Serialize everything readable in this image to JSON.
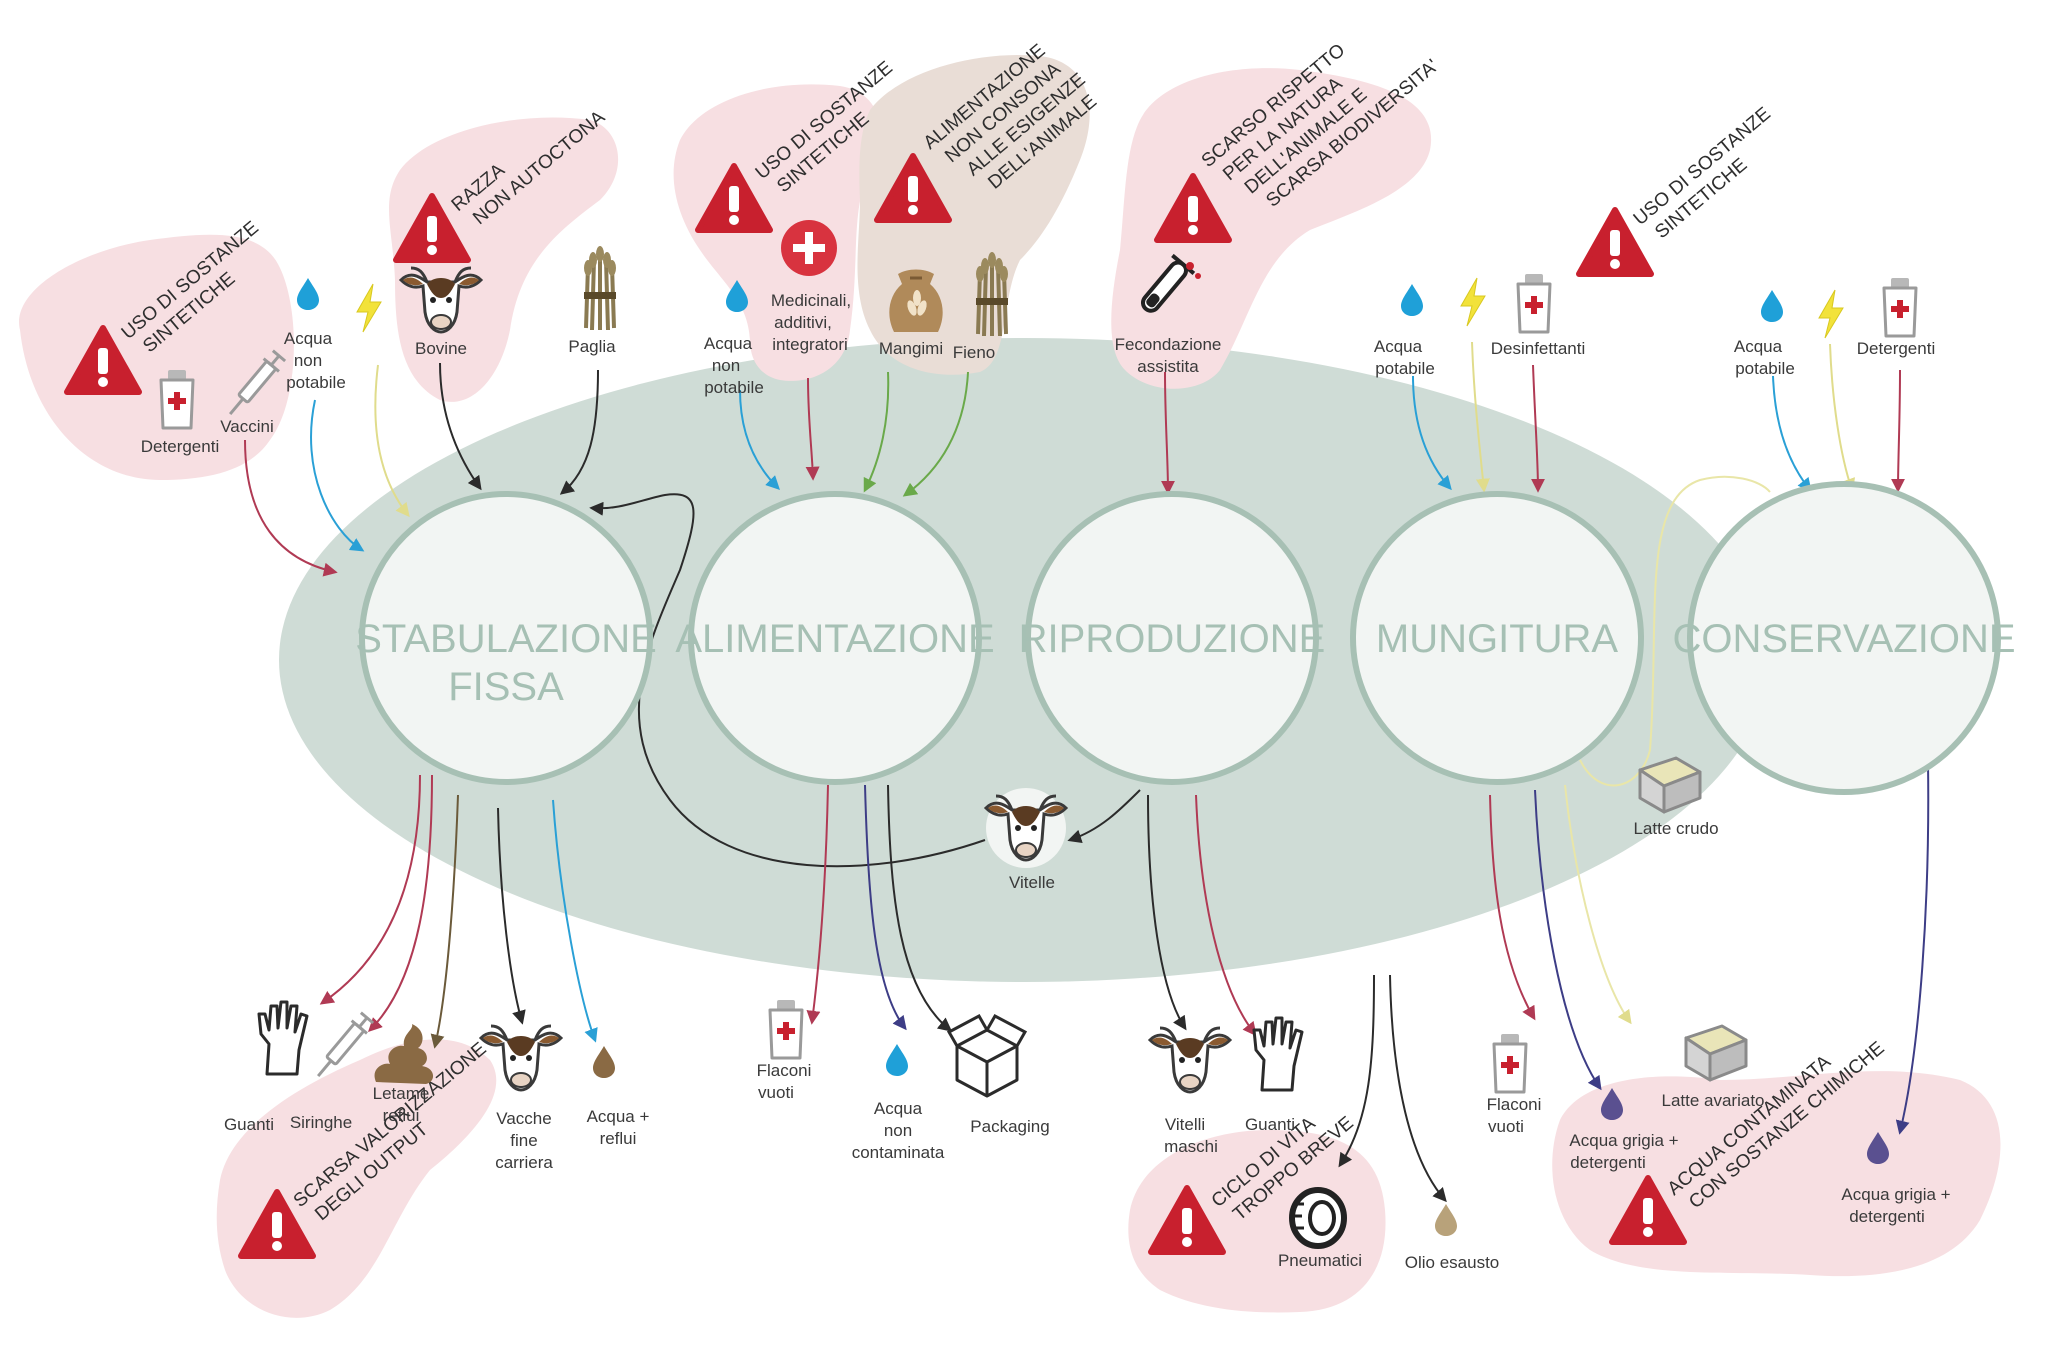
{
  "colors": {
    "ellipse": "#cfdcd6",
    "circle_fill": "#f2f5f3",
    "circle_stroke": "#a7c0b4",
    "stage_text": "#a6c0b4",
    "blob": "#f7dfe2",
    "blob_dark": "#e9ddd6",
    "warning": "#c8202e",
    "water": "#1fa0d8",
    "energy": "#f2e23a",
    "arrow_dark": "#2b2b2b",
    "arrow_red": "#b03a54",
    "arrow_blue": "#2aa0d6",
    "arrow_green": "#6aa94a",
    "arrow_navy": "#3d3d86",
    "arrow_brown": "#6b5a3a",
    "arrow_yellow": "#e9e6a8"
  },
  "stages": [
    {
      "line1": "STABULAZIONE",
      "line2": "FISSA"
    },
    {
      "line1": "ALIMENTAZIONE",
      "line2": ""
    },
    {
      "line1": "RIPRODUZIONE",
      "line2": ""
    },
    {
      "line1": "MUNGITURA",
      "line2": ""
    },
    {
      "line1": "CONSERVAZIONE",
      "line2": ""
    }
  ],
  "warnings": {
    "w1": [
      "USO DI SOSTANZE",
      "SINTETICHE"
    ],
    "w2": [
      "RAZZA",
      "NON AUTOCTONA"
    ],
    "w3": [
      "USO DI SOSTANZE",
      "SINTETICHE"
    ],
    "w4": [
      "ALIMENTAZIONE",
      "NON CONSONA",
      "ALLE ESIGENZE",
      "DELL'ANIMALE"
    ],
    "w5": [
      "SCARSO RISPETTO",
      "PER LA NATURA",
      "DELL'ANIMALE E",
      "SCARSA BIODIVERSITA'"
    ],
    "w6": [
      "USO DI SOSTANZE",
      "SINTETICHE"
    ],
    "w7": [
      "SCARSA VALORIZZAZIONE",
      "DEGLI OUTPUT"
    ],
    "w8": [
      "CICLO DI VITA",
      "TROPPO BREVE"
    ],
    "w9": [
      "ACQUA CONTAMINATA",
      "CON SOSTANZE CHIMICHE"
    ]
  },
  "inputs": {
    "detergenti_1": "Detergenti",
    "vaccini": "Vaccini",
    "acqua_np_1": [
      "Acqua",
      "non",
      "potabile"
    ],
    "bovine": "Bovine",
    "paglia": "Paglia",
    "acqua_np_2": [
      "Acqua",
      "non",
      "potabile"
    ],
    "medicinali": [
      "Medicinali,",
      "additivi,",
      "integratori"
    ],
    "mangimi": "Mangimi",
    "fieno": "Fieno",
    "fecondazione": [
      "Fecondazione",
      "assistita"
    ],
    "acqua_pot_1": [
      "Acqua",
      "potabile"
    ],
    "desinfettanti": "Desinfettanti",
    "acqua_pot_2": [
      "Acqua",
      "potabile"
    ],
    "detergenti_2": "Detergenti"
  },
  "middle": {
    "vitelle": "Vitelle",
    "latte_crudo": "Latte crudo"
  },
  "outputs": {
    "guanti_1": "Guanti",
    "siringhe": "Siringhe",
    "letame": [
      "Letame",
      "reflui"
    ],
    "vacche": [
      "Vacche",
      "fine",
      "carriera"
    ],
    "acqua_reflui": [
      "Acqua +",
      "reflui"
    ],
    "flaconi_1": [
      "Flaconi",
      "vuoti"
    ],
    "acqua_nc": [
      "Acqua",
      "non",
      "contaminata"
    ],
    "packaging": "Packaging",
    "vitelli": [
      "Vitelli",
      "maschi"
    ],
    "guanti_2": "Guanti",
    "pneumatici": "Pneumatici",
    "olio": "Olio esausto",
    "flaconi_2": [
      "Flaconi",
      "vuoti"
    ],
    "acqua_grigia_1": [
      "Acqua grigia +",
      "detergenti"
    ],
    "latte_avariato": "Latte avariato",
    "acqua_grigia_2": [
      "Acqua  grigia +",
      "detergenti"
    ]
  }
}
